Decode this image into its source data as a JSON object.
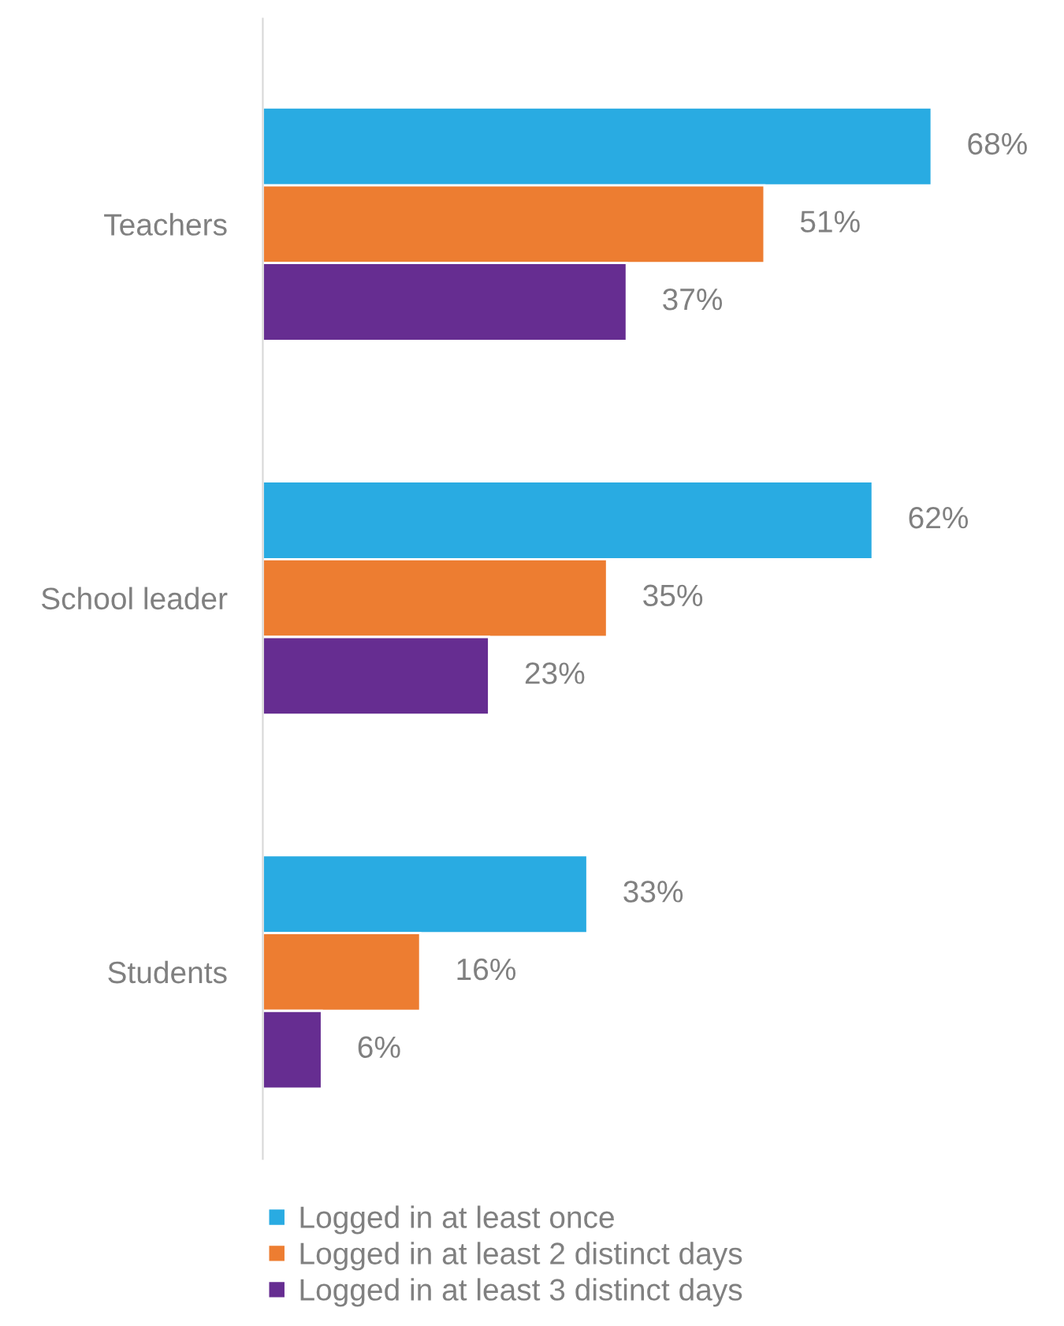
{
  "chart_data": {
    "type": "bar",
    "orientation": "horizontal",
    "categories": [
      "Teachers",
      "School leader",
      "Students"
    ],
    "series": [
      {
        "name": "Logged in at least once",
        "color": "#29abe2",
        "values": [
          68,
          62,
          33
        ],
        "value_labels": [
          "68%",
          "62%",
          "33%"
        ]
      },
      {
        "name": "Logged in at least 2 distinct days",
        "color": "#ed7d31",
        "values": [
          51,
          35,
          16
        ],
        "value_labels": [
          "51%",
          "35%",
          "16%"
        ]
      },
      {
        "name": "Logged in at least 3 distinct days",
        "color": "#662d91",
        "values": [
          37,
          23,
          6
        ],
        "value_labels": [
          "37%",
          "23%",
          "6%"
        ]
      }
    ],
    "tick_labels": "y",
    "grid": false,
    "legend": "bottom"
  }
}
